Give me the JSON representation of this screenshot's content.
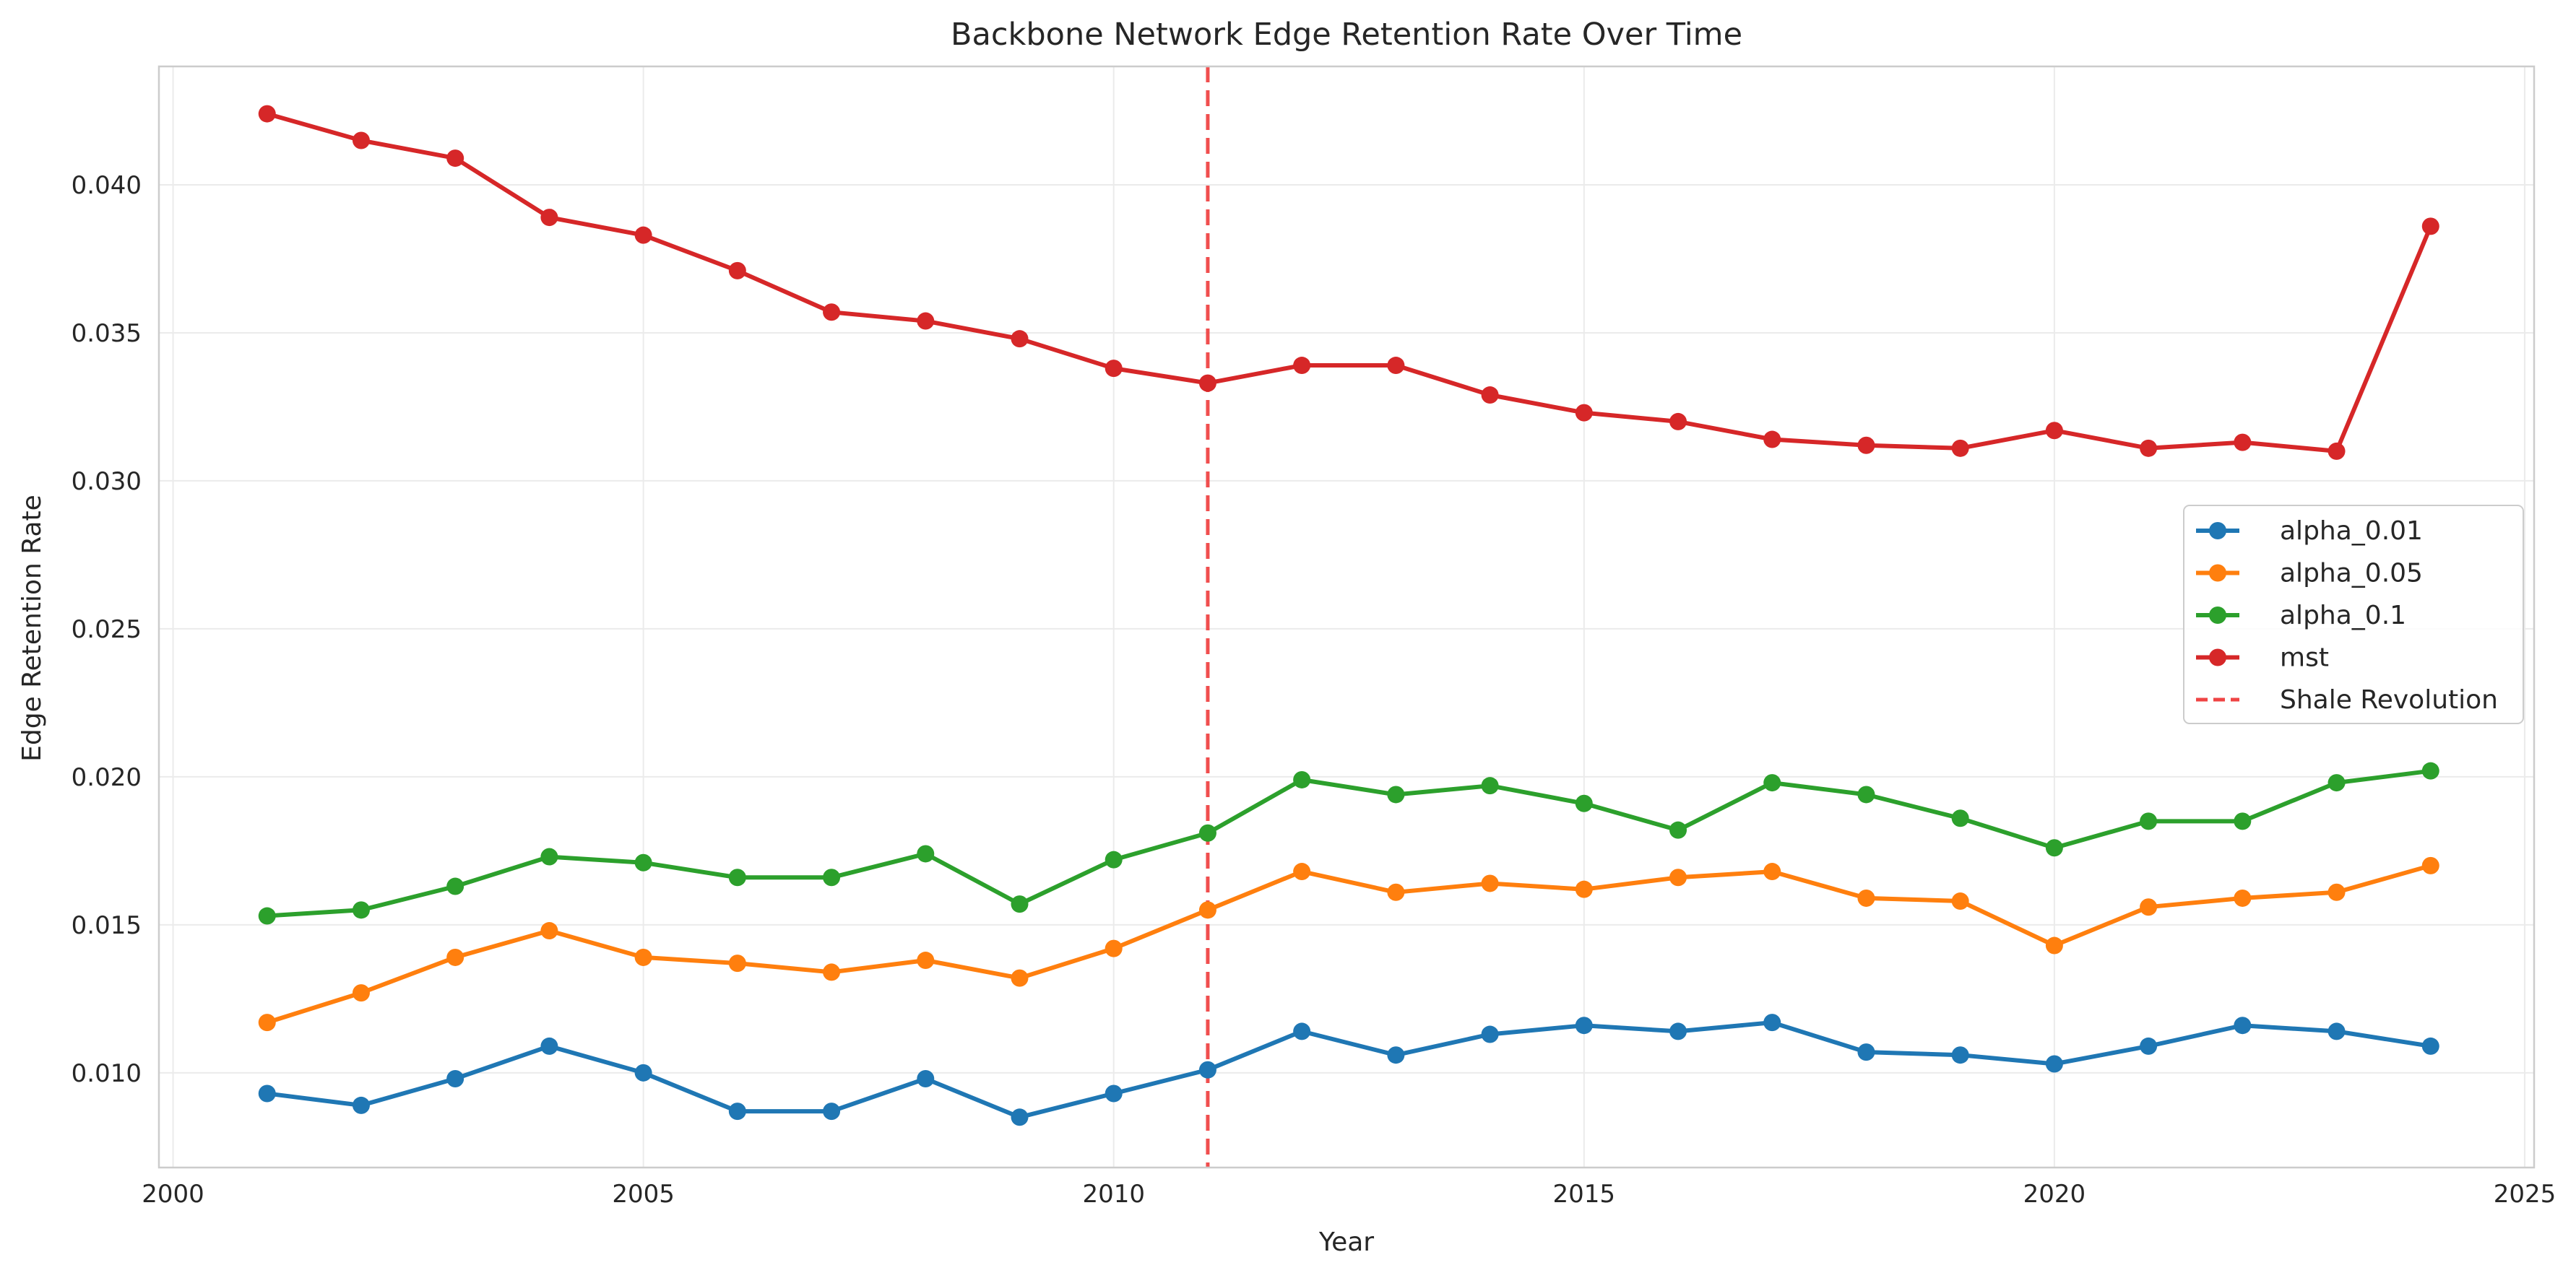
{
  "chart_data": {
    "type": "line",
    "title": "Backbone Network Edge Retention Rate Over Time",
    "xlabel": "Year",
    "ylabel": "Edge Retention Rate",
    "xlim": [
      1999.85,
      2025.1
    ],
    "ylim": [
      0.0068,
      0.044
    ],
    "xticks": [
      2000,
      2005,
      2010,
      2015,
      2020,
      2025
    ],
    "yticks": [
      0.01,
      0.015,
      0.02,
      0.025,
      0.03,
      0.035,
      0.04
    ],
    "ytick_labels": [
      "0.010",
      "0.015",
      "0.020",
      "0.025",
      "0.030",
      "0.035",
      "0.040"
    ],
    "grid": true,
    "legend_position": "center-right",
    "x": [
      2001,
      2002,
      2003,
      2004,
      2005,
      2006,
      2007,
      2008,
      2009,
      2010,
      2011,
      2012,
      2013,
      2014,
      2015,
      2016,
      2017,
      2018,
      2019,
      2020,
      2021,
      2022,
      2023,
      2024
    ],
    "series": [
      {
        "name": "alpha_0.01",
        "color": "#1f77b4",
        "values": [
          0.0093,
          0.0089,
          0.0098,
          0.0109,
          0.01,
          0.0087,
          0.0087,
          0.0098,
          0.0085,
          0.0093,
          0.0101,
          0.0114,
          0.0106,
          0.0113,
          0.0116,
          0.0114,
          0.0117,
          0.0107,
          0.0106,
          0.0103,
          0.0109,
          0.0116,
          0.0114,
          0.0109
        ]
      },
      {
        "name": "alpha_0.05",
        "color": "#ff7f0e",
        "values": [
          0.0117,
          0.0127,
          0.0139,
          0.0148,
          0.0139,
          0.0137,
          0.0134,
          0.0138,
          0.0132,
          0.0142,
          0.0155,
          0.0168,
          0.0161,
          0.0164,
          0.0162,
          0.0166,
          0.0168,
          0.0159,
          0.0158,
          0.0143,
          0.0156,
          0.0159,
          0.0161,
          0.017
        ]
      },
      {
        "name": "alpha_0.1",
        "color": "#2ca02c",
        "values": [
          0.0153,
          0.0155,
          0.0163,
          0.0173,
          0.0171,
          0.0166,
          0.0166,
          0.0174,
          0.0157,
          0.0172,
          0.0181,
          0.0199,
          0.0194,
          0.0197,
          0.0191,
          0.0182,
          0.0198,
          0.0194,
          0.0186,
          0.0176,
          0.0185,
          0.0185,
          0.0198,
          0.0202
        ]
      },
      {
        "name": "mst",
        "color": "#d62728",
        "values": [
          0.0424,
          0.0415,
          0.0409,
          0.0389,
          0.0383,
          0.0371,
          0.0357,
          0.0354,
          0.0348,
          0.0338,
          0.0333,
          0.0339,
          0.0339,
          0.0329,
          0.0323,
          0.032,
          0.0314,
          0.0312,
          0.0311,
          0.0317,
          0.0311,
          0.0313,
          0.031,
          0.0386
        ]
      }
    ],
    "annotations": [
      {
        "type": "vline",
        "x": 2011,
        "label": "Shale Revolution",
        "color": "#ef4444",
        "style": "dashed"
      }
    ]
  }
}
